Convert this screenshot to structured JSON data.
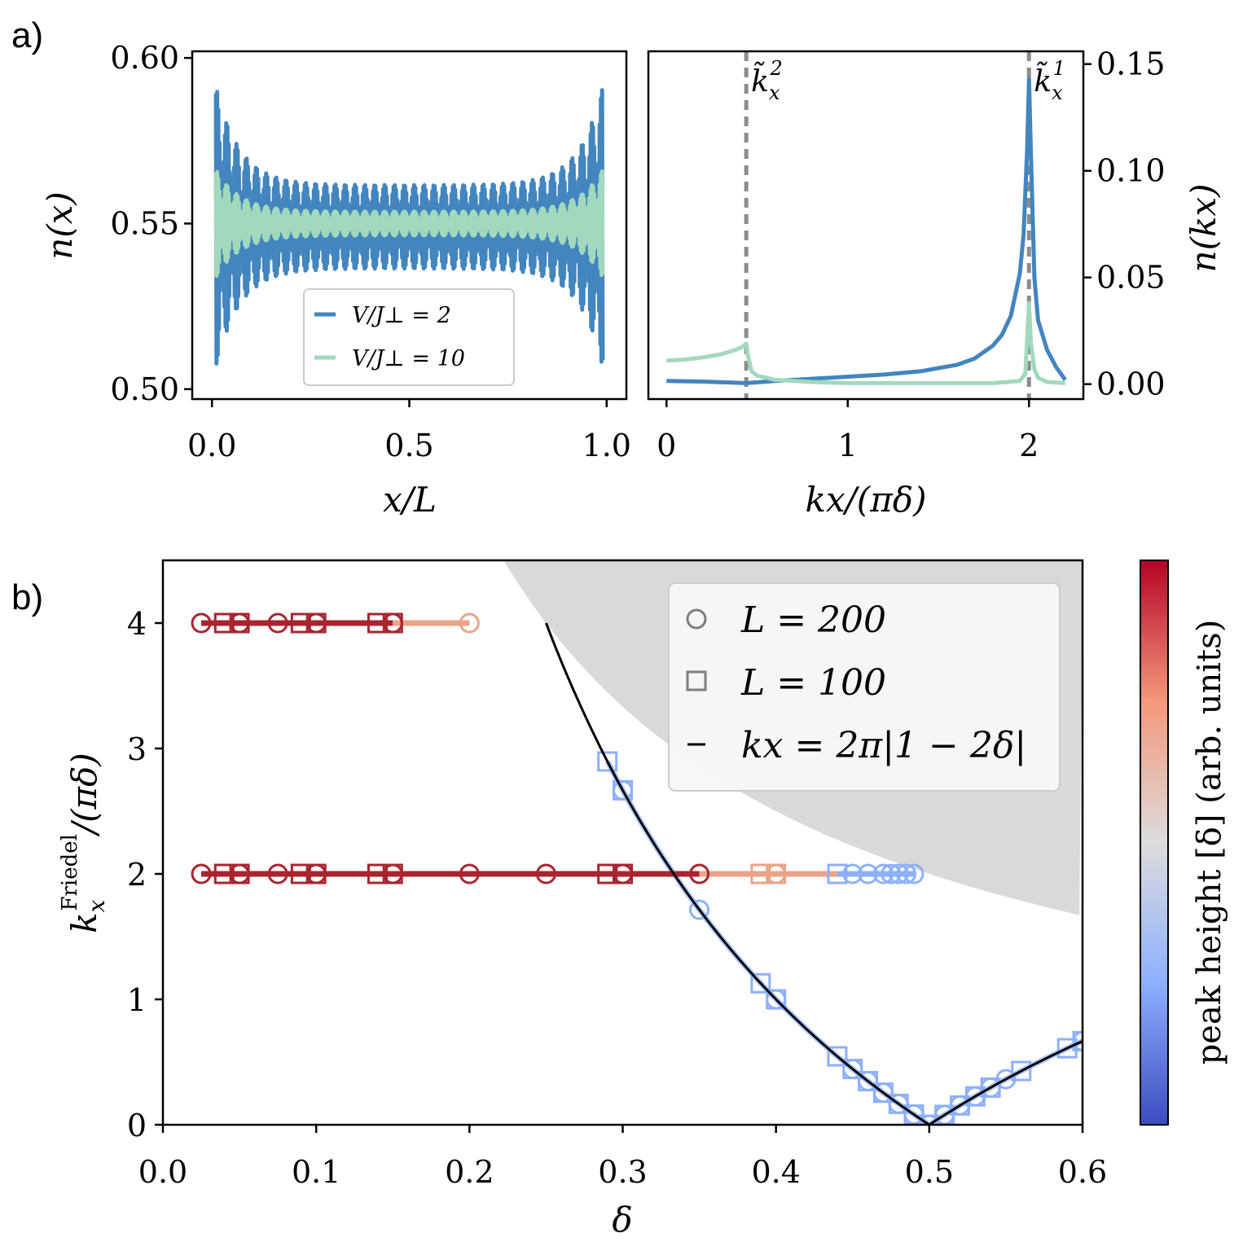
{
  "panel_labels": [
    "a)",
    "b)"
  ],
  "chart_data": [
    {
      "id": "nx",
      "type": "line",
      "xlabel": "x/L",
      "ylabel": "n(x)",
      "xlim": [
        -0.05,
        1.05
      ],
      "ylim": [
        0.497,
        0.602
      ],
      "xticks": [
        0.0,
        0.5,
        1.0
      ],
      "xtick_labels": [
        "0.0",
        "0.5",
        "1.0"
      ],
      "yticks": [
        0.5,
        0.55,
        0.6
      ],
      "ytick_labels": [
        "0.50",
        "0.55",
        "0.60"
      ],
      "legend": {
        "placement": "lower-center",
        "entries": [
          "V/J⊥ = 2",
          "V/J⊥ = 10"
        ]
      },
      "series": [
        {
          "name": "V/J⊥ = 2",
          "color": "#4285bf",
          "mean": 0.549,
          "amp_center": 0.014,
          "amp_edge": 0.047,
          "period": 0.025
        },
        {
          "name": "V/J⊥ = 10",
          "color": "#a2d9bd",
          "mean": 0.55,
          "amp_center": 0.004,
          "amp_edge": 0.018,
          "period": 0.025
        }
      ]
    },
    {
      "id": "nk",
      "type": "line",
      "xlabel": "kx/(πδ)",
      "ylabel": "n(kx)",
      "y_axis_side": "right",
      "xlim": [
        -0.1,
        2.3
      ],
      "ylim": [
        -0.007,
        0.156
      ],
      "xticks": [
        0,
        1,
        2
      ],
      "xtick_labels": [
        "0",
        "1",
        "2"
      ],
      "yticks": [
        0.0,
        0.05,
        0.1,
        0.15
      ],
      "ytick_labels": [
        "0.00",
        "0.05",
        "0.10",
        "0.15"
      ],
      "vlines": [
        {
          "x": 0.44,
          "label_base": "k̃",
          "label_sub": "x",
          "label_sup": "2"
        },
        {
          "x": 2.0,
          "label_base": "k̃",
          "label_sub": "x",
          "label_sup": "1"
        }
      ],
      "series": [
        {
          "name": "V/J⊥ = 2",
          "color": "#4285bf",
          "x": [
            0,
            0.2,
            0.44,
            0.6,
            0.8,
            1.0,
            1.2,
            1.4,
            1.6,
            1.7,
            1.8,
            1.85,
            1.9,
            1.95,
            1.97,
            1.99,
            2.0,
            2.01,
            2.03,
            2.05,
            2.1,
            2.15,
            2.2
          ],
          "y": [
            0.0015,
            0.0012,
            0.0005,
            0.0015,
            0.0025,
            0.0035,
            0.0045,
            0.006,
            0.009,
            0.012,
            0.018,
            0.023,
            0.032,
            0.052,
            0.07,
            0.11,
            0.143,
            0.11,
            0.05,
            0.03,
            0.016,
            0.008,
            0.002
          ]
        },
        {
          "name": "V/J⊥ = 10",
          "color": "#a2d9bd",
          "x": [
            0,
            0.1,
            0.2,
            0.3,
            0.38,
            0.42,
            0.44,
            0.45,
            0.47,
            0.5,
            0.6,
            0.8,
            1.0,
            1.2,
            1.4,
            1.6,
            1.8,
            1.95,
            1.98,
            2.0,
            2.01,
            2.03,
            2.05,
            2.1,
            2.2
          ],
          "y": [
            0.011,
            0.0115,
            0.0125,
            0.014,
            0.016,
            0.0175,
            0.019,
            0.013,
            0.006,
            0.004,
            0.002,
            0.001,
            0.0005,
            0.0005,
            0.0005,
            0.0005,
            0.0005,
            0.0015,
            0.005,
            0.038,
            0.02,
            0.007,
            0.003,
            0.001,
            0.0005
          ]
        }
      ]
    },
    {
      "id": "friedel",
      "type": "scatter",
      "xlabel": "δ",
      "ylabel_base": "k",
      "ylabel_sub": "x",
      "ylabel_sup": "Friedel",
      "ylabel_tail": "/(πδ)",
      "xlim": [
        0.0,
        0.6
      ],
      "ylim": [
        0,
        4.5
      ],
      "xticks": [
        0.0,
        0.1,
        0.2,
        0.3,
        0.4,
        0.5,
        0.6
      ],
      "xtick_labels": [
        "0.0",
        "0.1",
        "0.2",
        "0.3",
        "0.4",
        "0.5",
        "0.6"
      ],
      "yticks": [
        0,
        1,
        2,
        3,
        4
      ],
      "ytick_labels": [
        "0",
        "1",
        "2",
        "3",
        "4"
      ],
      "shaded_region": {
        "color": "#d9d9d9",
        "boundary": "y = 1/δ"
      },
      "legend": {
        "placement": "upper-right",
        "entries": [
          {
            "marker": "circle",
            "label": "L = 200"
          },
          {
            "marker": "square",
            "label": "L = 100"
          },
          {
            "marker": "line",
            "label": "kx = 2π|1 − 2δ|"
          }
        ]
      },
      "theory_line": {
        "from": 0.25,
        "to": 0.6,
        "color": "#000000"
      },
      "colorbar": {
        "label": "peak height [δ] (arb. units)",
        "colors": [
          "#3b4cc0",
          "#8db0fe",
          "#dddcdc",
          "#f4987a",
          "#b40426"
        ]
      },
      "branches": [
        {
          "name": "4 line",
          "y": 4,
          "color": "#a82530",
          "circles": [
            0.025,
            0.05,
            0.075,
            0.1,
            0.15,
            0.2
          ],
          "squares": [
            0.04,
            0.05,
            0.09,
            0.1,
            0.14,
            0.15
          ],
          "faded_from": 0.15,
          "faded_color": "#eaa488"
        },
        {
          "name": "2 line",
          "y": 2,
          "color": "#a82530",
          "circles": [
            0.025,
            0.05,
            0.075,
            0.1,
            0.15,
            0.2,
            0.25,
            0.3,
            0.35,
            0.4,
            0.45,
            0.46,
            0.47,
            0.475,
            0.48,
            0.485,
            0.49
          ],
          "squares": [
            0.04,
            0.05,
            0.09,
            0.1,
            0.14,
            0.15,
            0.29,
            0.3,
            0.39,
            0.4,
            0.44
          ],
          "faded_from": 0.35,
          "faded_color": "#eaa488",
          "blue_from": 0.44,
          "blue_color": "#8db0fe"
        }
      ],
      "blue_points": {
        "color": "#8db0fe",
        "circles": [
          0.3,
          0.35,
          0.4,
          0.45,
          0.46,
          0.47,
          0.48,
          0.49,
          0.5,
          0.51,
          0.52,
          0.53,
          0.54,
          0.55,
          0.6
        ],
        "squares": [
          0.29,
          0.3,
          0.39,
          0.4,
          0.44,
          0.45,
          0.46,
          0.47,
          0.48,
          0.49,
          0.5,
          0.51,
          0.52,
          0.53,
          0.54,
          0.56,
          0.59,
          0.6
        ]
      }
    }
  ]
}
